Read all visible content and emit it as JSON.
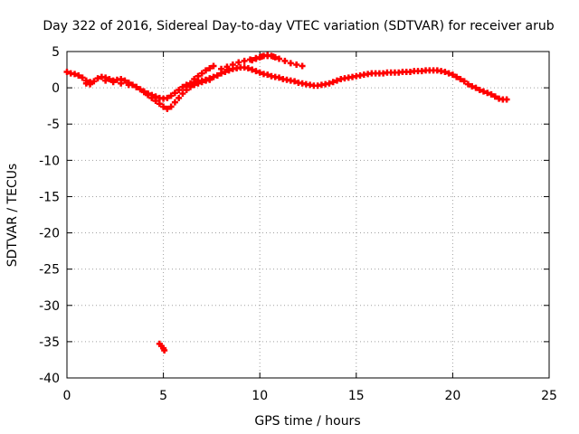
{
  "chart_data": {
    "type": "scatter",
    "title": "Day 322 of 2016, Sidereal Day-to-day VTEC variation (SDTVAR) for receiver arub",
    "xlabel": "GPS time / hours",
    "ylabel": "SDTVAR / TECUs",
    "xlim": [
      0,
      25
    ],
    "ylim": [
      -40,
      5
    ],
    "xticks": [
      0,
      5,
      10,
      15,
      20,
      25
    ],
    "yticks": [
      5,
      0,
      -5,
      -10,
      -15,
      -20,
      -25,
      -30,
      -35,
      -40
    ],
    "grid": true,
    "series": [
      {
        "name": "SDTVAR",
        "color": "#ff0000",
        "x": [
          0.0,
          0.2,
          0.4,
          0.6,
          0.8,
          1.0,
          1.2,
          1.4,
          1.6,
          1.8,
          2.0,
          2.2,
          2.4,
          2.6,
          2.8,
          3.0,
          3.2,
          3.4,
          3.6,
          3.8,
          4.0,
          4.2,
          4.4,
          4.6,
          4.8,
          5.0,
          5.2,
          5.4,
          5.6,
          5.8,
          6.0,
          6.2,
          6.4,
          6.6,
          6.8,
          7.0,
          7.2,
          7.4,
          7.6,
          7.8,
          8.0,
          8.2,
          8.4,
          8.6,
          8.8,
          9.0,
          9.2,
          9.4,
          9.6,
          9.8,
          10.0,
          10.2,
          10.4,
          10.6,
          10.8,
          11.0,
          11.2,
          11.4,
          11.6,
          11.8,
          12.0,
          12.2,
          12.4,
          12.6,
          12.8,
          13.0,
          13.2,
          13.4,
          13.6,
          13.8,
          14.0,
          14.2,
          14.4,
          14.6,
          14.8,
          15.0,
          15.2,
          15.4,
          15.6,
          15.8,
          16.0,
          16.2,
          16.4,
          16.6,
          16.8,
          17.0,
          17.2,
          17.4,
          17.6,
          17.8,
          18.0,
          18.2,
          18.4,
          18.6,
          18.8,
          19.0,
          19.2,
          19.4,
          19.6,
          19.8,
          20.0,
          20.2,
          20.4,
          20.6,
          20.8,
          21.0,
          21.2,
          21.4,
          21.6,
          21.8,
          22.0,
          22.2,
          22.4,
          22.6,
          22.8,
          4.0,
          4.2,
          4.4,
          4.6,
          4.8,
          5.0,
          5.2,
          5.4,
          5.6,
          5.8,
          6.0,
          6.2,
          6.4,
          6.6,
          6.8,
          7.0,
          7.2,
          7.4,
          6.6,
          6.8,
          7.0,
          7.2,
          7.4,
          7.6,
          8.0,
          8.3,
          8.6,
          8.9,
          9.2,
          9.5,
          9.8,
          10.1,
          10.4,
          10.7,
          11.0,
          11.3,
          11.6,
          11.9,
          12.2,
          9.6,
          9.8,
          10.0,
          10.2,
          10.4,
          10.6,
          10.8,
          2.0,
          2.4,
          2.8,
          3.2,
          3.6,
          1.0,
          1.2,
          4.8,
          4.9,
          5.0,
          5.05
        ],
        "y": [
          2.2,
          2.0,
          1.9,
          1.7,
          1.4,
          1.0,
          0.8,
          0.9,
          1.3,
          1.5,
          1.4,
          1.2,
          1.0,
          1.1,
          1.2,
          1.0,
          0.7,
          0.4,
          0.1,
          -0.2,
          -0.5,
          -0.8,
          -1.0,
          -1.2,
          -1.4,
          -1.5,
          -1.4,
          -1.1,
          -0.7,
          -0.3,
          0.1,
          0.4,
          0.6,
          0.8,
          0.9,
          1.0,
          1.1,
          1.3,
          1.5,
          1.7,
          2.0,
          2.2,
          2.4,
          2.6,
          2.7,
          2.8,
          2.8,
          2.7,
          2.5,
          2.3,
          2.1,
          1.9,
          1.8,
          1.6,
          1.5,
          1.4,
          1.2,
          1.1,
          1.0,
          0.9,
          0.7,
          0.6,
          0.5,
          0.4,
          0.3,
          0.3,
          0.4,
          0.5,
          0.6,
          0.8,
          1.0,
          1.2,
          1.3,
          1.4,
          1.5,
          1.6,
          1.7,
          1.8,
          1.9,
          2.0,
          2.0,
          2.0,
          2.0,
          2.1,
          2.1,
          2.1,
          2.1,
          2.2,
          2.2,
          2.2,
          2.3,
          2.3,
          2.3,
          2.4,
          2.4,
          2.4,
          2.4,
          2.3,
          2.2,
          2.0,
          1.8,
          1.5,
          1.2,
          0.9,
          0.5,
          0.2,
          0.0,
          -0.3,
          -0.5,
          -0.7,
          -0.9,
          -1.2,
          -1.5,
          -1.6,
          -1.6,
          -0.6,
          -1.0,
          -1.4,
          -1.8,
          -2.2,
          -2.6,
          -2.9,
          -2.6,
          -2.0,
          -1.4,
          -0.8,
          -0.3,
          0.1,
          0.4,
          0.6,
          0.8,
          1.0,
          1.1,
          1.2,
          1.6,
          2.0,
          2.4,
          2.7,
          3.0,
          2.6,
          2.9,
          3.2,
          3.5,
          3.7,
          3.9,
          4.1,
          4.3,
          4.4,
          4.3,
          4.0,
          3.7,
          3.4,
          3.2,
          3.0,
          3.8,
          4.0,
          4.2,
          4.4,
          4.5,
          4.4,
          4.2,
          1.0,
          0.8,
          0.6,
          0.4,
          0.1,
          0.6,
          0.5,
          -35.3,
          -35.6,
          -35.9,
          -36.2
        ]
      }
    ]
  }
}
